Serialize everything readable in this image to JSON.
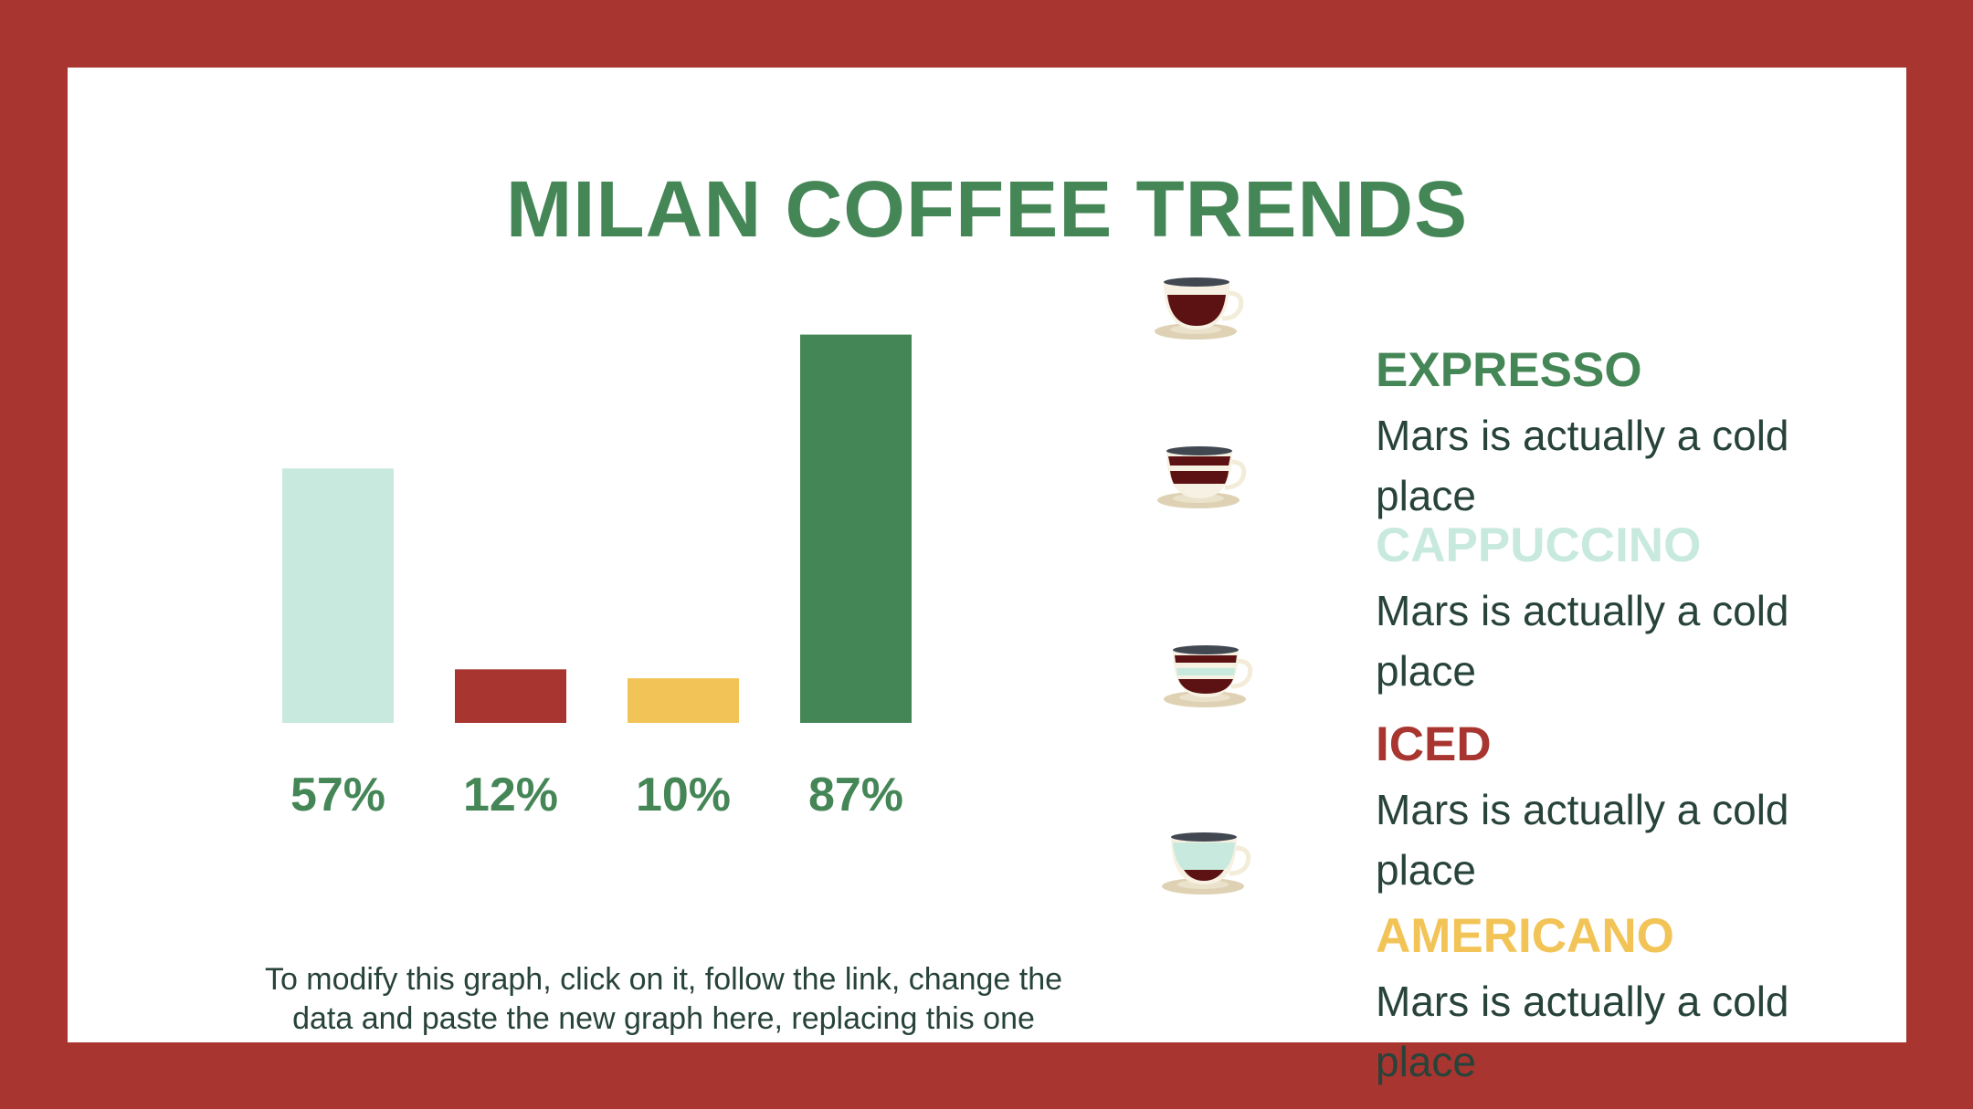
{
  "title": "MILAN COFFEE TRENDS",
  "colors": {
    "frame": "#a8352f",
    "green": "#458657",
    "mint": "#c8e9de",
    "red": "#a8352f",
    "yellow": "#f2c457",
    "text": "#27433a"
  },
  "chart_data": {
    "type": "bar",
    "categories": [
      "EXPRESSO",
      "CAPPUCCINO",
      "ICED",
      "AMERICANO"
    ],
    "values": [
      57,
      12,
      10,
      87
    ],
    "value_labels": [
      "57%",
      "12%",
      "10%",
      "87%"
    ],
    "bar_colors": [
      "#c8e9de",
      "#a8352f",
      "#f2c457",
      "#458657"
    ],
    "ylim": [
      0,
      100
    ],
    "grid": false,
    "title": "",
    "xlabel": "",
    "ylabel": ""
  },
  "note": "To modify this graph, click on it, follow the link, change the data and paste the new graph here, replacing this one",
  "legend": [
    {
      "name": "EXPRESSO",
      "color": "#458657",
      "desc": "Mars is actually a cold place",
      "icon": "espresso-cup-icon"
    },
    {
      "name": "CAPPUCCINO",
      "color": "#c8e9de",
      "desc": "Mars is actually a cold place",
      "icon": "cappuccino-cup-icon"
    },
    {
      "name": "ICED",
      "color": "#a8352f",
      "desc": "Mars is actually a cold place",
      "icon": "iced-coffee-cup-icon"
    },
    {
      "name": "AMERICANO",
      "color": "#f2c457",
      "desc": "Mars is actually a cold place",
      "icon": "americano-cup-icon"
    }
  ]
}
